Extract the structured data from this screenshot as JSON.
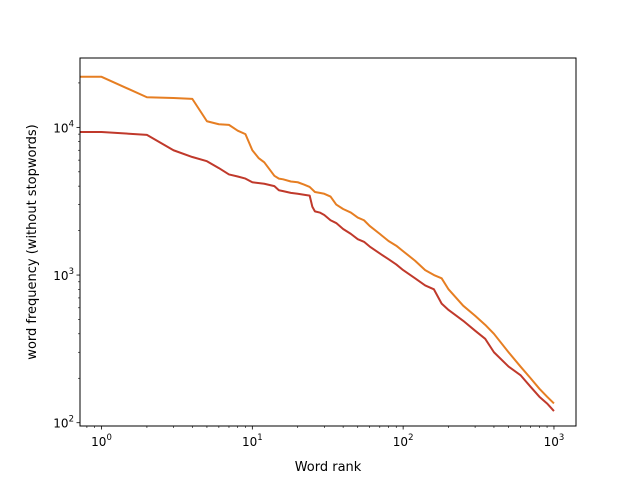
{
  "chart_data": {
    "type": "line",
    "title": "",
    "xlabel": "Word rank",
    "ylabel": "word frequency (without stopwords)",
    "xscale": "log",
    "yscale": "log",
    "xlim": [
      0.72,
      1400
    ],
    "ylim": [
      95,
      29500
    ],
    "grid": false,
    "x_ticks": [
      {
        "value": 1,
        "base": "10",
        "exp": "0"
      },
      {
        "value": 10,
        "base": "10",
        "exp": "1"
      },
      {
        "value": 100,
        "base": "10",
        "exp": "2"
      },
      {
        "value": 1000,
        "base": "10",
        "exp": "3"
      }
    ],
    "y_ticks": [
      {
        "value": 100,
        "base": "10",
        "exp": "2"
      },
      {
        "value": 1000,
        "base": "10",
        "exp": "3"
      },
      {
        "value": 10000,
        "base": "10",
        "exp": "4"
      }
    ],
    "series": [
      {
        "color": "#e67e22",
        "x": [
          0.72,
          1,
          2,
          3,
          4,
          5,
          6,
          7,
          8,
          9,
          10,
          11,
          12,
          13,
          14,
          15,
          16,
          18,
          20,
          22,
          24,
          26,
          28,
          30,
          33,
          36,
          40,
          45,
          50,
          55,
          60,
          70,
          80,
          90,
          100,
          120,
          140,
          160,
          180,
          200,
          250,
          300,
          350,
          400,
          500,
          600,
          700,
          800,
          900,
          1000
        ],
        "values": [
          22000,
          22000,
          16000,
          15800,
          15600,
          11000,
          10500,
          10400,
          9500,
          9000,
          7000,
          6200,
          5800,
          5200,
          4700,
          4500,
          4450,
          4300,
          4250,
          4100,
          3950,
          3650,
          3600,
          3550,
          3400,
          3000,
          2800,
          2650,
          2450,
          2350,
          2150,
          1900,
          1700,
          1580,
          1450,
          1250,
          1080,
          1000,
          950,
          800,
          620,
          530,
          460,
          400,
          300,
          240,
          200,
          170,
          150,
          135
        ]
      },
      {
        "color": "#c0392b",
        "x": [
          0.72,
          1,
          2,
          3,
          4,
          5,
          6,
          7,
          8,
          9,
          10,
          12,
          14,
          15,
          16,
          18,
          20,
          22,
          24,
          25,
          26,
          28,
          30,
          33,
          36,
          40,
          45,
          50,
          55,
          60,
          70,
          80,
          90,
          100,
          120,
          140,
          160,
          180,
          200,
          250,
          300,
          350,
          400,
          500,
          600,
          700,
          800,
          900,
          1000
        ],
        "values": [
          9300,
          9300,
          8900,
          7000,
          6300,
          5900,
          5300,
          4800,
          4650,
          4500,
          4250,
          4150,
          4000,
          3750,
          3700,
          3600,
          3550,
          3500,
          3450,
          2900,
          2700,
          2650,
          2550,
          2350,
          2250,
          2050,
          1900,
          1750,
          1680,
          1560,
          1400,
          1280,
          1180,
          1080,
          950,
          850,
          800,
          640,
          580,
          490,
          420,
          370,
          300,
          240,
          210,
          175,
          150,
          135,
          120
        ]
      }
    ]
  }
}
